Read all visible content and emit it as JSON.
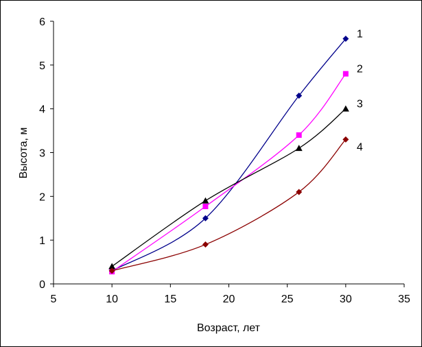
{
  "chart_data": {
    "type": "line",
    "title": "",
    "xlabel": "Возраст, лет",
    "ylabel": "Высота, м",
    "xlim": [
      5,
      35
    ],
    "ylim": [
      0,
      6
    ],
    "xticks": [
      5,
      10,
      15,
      20,
      25,
      30,
      35
    ],
    "yticks": [
      0,
      1,
      2,
      3,
      4,
      5,
      6
    ],
    "grid": false,
    "smoothed": true,
    "series": [
      {
        "label": "1",
        "color": "#00008B",
        "marker": "diamond",
        "x": [
          10,
          18,
          26,
          30
        ],
        "y": [
          0.3,
          1.5,
          4.3,
          5.6
        ]
      },
      {
        "label": "2",
        "color": "#FF00FF",
        "marker": "square",
        "x": [
          10,
          18,
          26,
          30
        ],
        "y": [
          0.28,
          1.77,
          3.4,
          4.8
        ]
      },
      {
        "label": "3",
        "color": "#000000",
        "marker": "triangle",
        "x": [
          10,
          18,
          26,
          30
        ],
        "y": [
          0.4,
          1.9,
          3.1,
          4.0
        ]
      },
      {
        "label": "4",
        "color": "#8B0000",
        "marker": "diamond",
        "x": [
          10,
          18,
          26,
          30
        ],
        "y": [
          0.3,
          0.9,
          2.1,
          3.3
        ]
      }
    ]
  }
}
